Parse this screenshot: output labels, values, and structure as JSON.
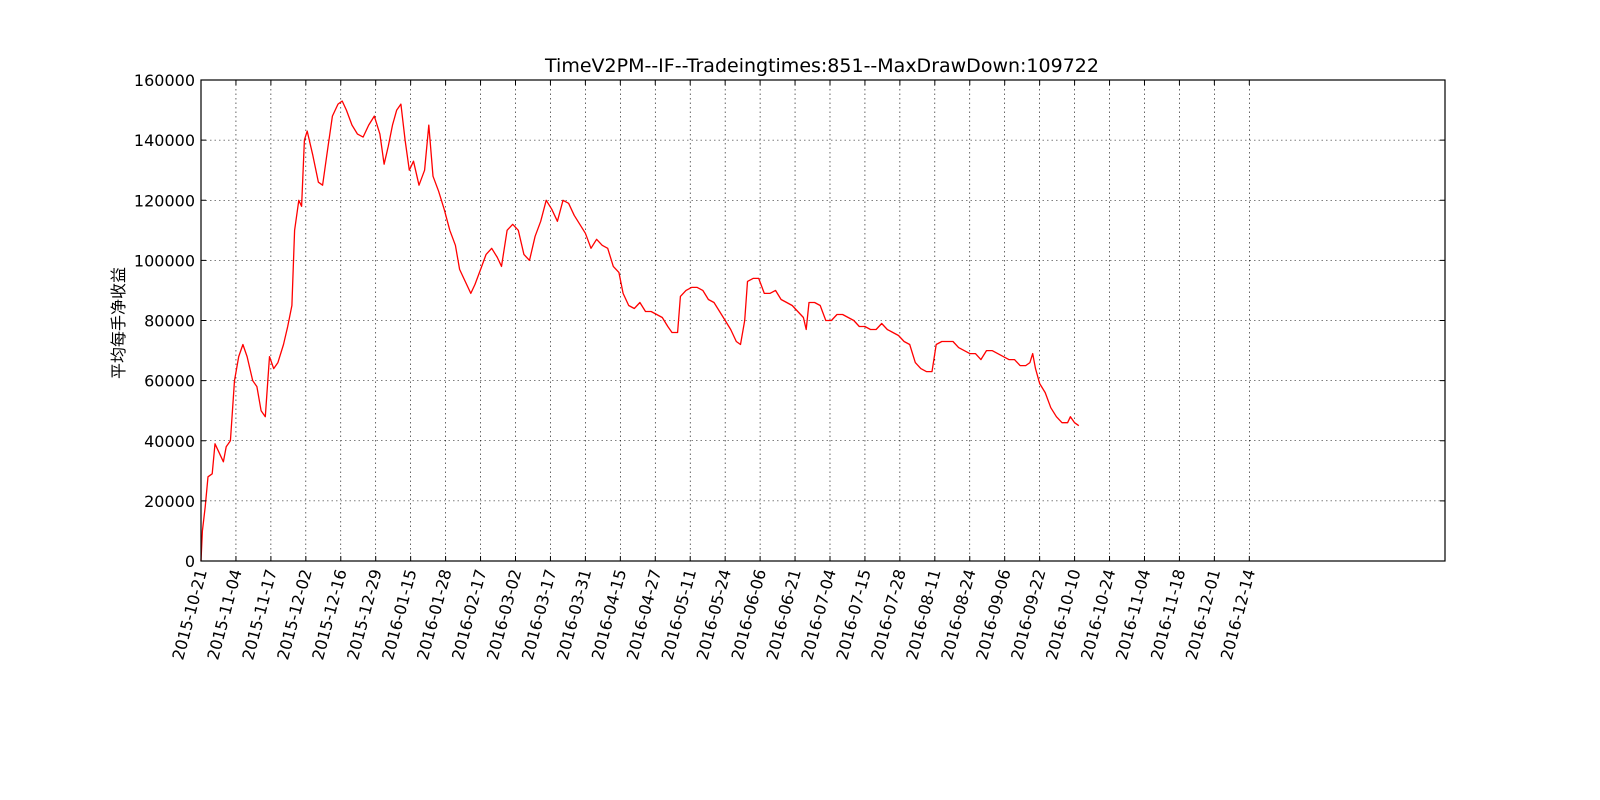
{
  "chart_data": {
    "type": "line",
    "title": "TimeV2PM--IF--Tradeingtimes:851--MaxDrawDown:109722",
    "xlabel": "",
    "ylabel": "平均每手净收益",
    "ylim": [
      0,
      160000
    ],
    "yticks": [
      "0",
      "20000",
      "40000",
      "60000",
      "80000",
      "100000",
      "120000",
      "140000",
      "160000"
    ],
    "x_index_range": [
      0,
      890
    ],
    "xtick_positions": [
      0,
      25,
      50,
      75,
      100,
      125,
      150,
      175,
      200,
      225,
      250,
      275,
      300,
      325,
      350,
      375,
      400,
      425,
      450,
      475,
      500,
      525,
      550,
      575,
      600,
      625,
      650,
      675,
      700,
      725,
      750
    ],
    "xticks": [
      "2015-10-21",
      "2015-11-04",
      "2015-11-17",
      "2015-12-02",
      "2015-12-16",
      "2015-12-29",
      "2016-01-15",
      "2016-01-28",
      "2016-02-17",
      "2016-03-02",
      "2016-03-17",
      "2016-03-31",
      "2016-04-15",
      "2016-04-27",
      "2016-05-11",
      "2016-05-24",
      "2016-06-06",
      "2016-06-21",
      "2016-07-04",
      "2016-07-15",
      "2016-07-28",
      "2016-08-11",
      "2016-08-24",
      "2016-09-06",
      "2016-09-22",
      "2016-10-10",
      "2016-10-24",
      "2016-11-04",
      "2016-11-18",
      "2016-12-01",
      "2016-12-14"
    ],
    "grid": true,
    "series": [
      {
        "color": "#ff0000",
        "points": [
          [
            0,
            0
          ],
          [
            1,
            10000
          ],
          [
            3,
            18000
          ],
          [
            5,
            28000
          ],
          [
            8,
            29000
          ],
          [
            10,
            39000
          ],
          [
            13,
            36000
          ],
          [
            16,
            33000
          ],
          [
            18,
            38000
          ],
          [
            21,
            40000
          ],
          [
            24,
            60000
          ],
          [
            27,
            68000
          ],
          [
            30,
            72000
          ],
          [
            33,
            68000
          ],
          [
            37,
            60000
          ],
          [
            40,
            58000
          ],
          [
            43,
            50000
          ],
          [
            46,
            48000
          ],
          [
            49,
            68000
          ],
          [
            52,
            64000
          ],
          [
            55,
            66000
          ],
          [
            59,
            72000
          ],
          [
            62,
            78000
          ],
          [
            65,
            85000
          ],
          [
            67,
            110000
          ],
          [
            70,
            120000
          ],
          [
            72,
            118000
          ],
          [
            74,
            140000
          ],
          [
            76,
            143000
          ],
          [
            80,
            135000
          ],
          [
            84,
            126000
          ],
          [
            87,
            125000
          ],
          [
            90,
            135000
          ],
          [
            94,
            148000
          ],
          [
            98,
            152000
          ],
          [
            101,
            153000
          ],
          [
            104,
            150000
          ],
          [
            108,
            145000
          ],
          [
            112,
            142000
          ],
          [
            116,
            141000
          ],
          [
            120,
            145000
          ],
          [
            124,
            148000
          ],
          [
            128,
            142000
          ],
          [
            131,
            132000
          ],
          [
            134,
            138000
          ],
          [
            137,
            145000
          ],
          [
            140,
            150000
          ],
          [
            143,
            152000
          ],
          [
            146,
            140000
          ],
          [
            149,
            130000
          ],
          [
            152,
            133000
          ],
          [
            156,
            125000
          ],
          [
            160,
            130000
          ],
          [
            163,
            145000
          ],
          [
            166,
            128000
          ],
          [
            170,
            123000
          ],
          [
            174,
            117000
          ],
          [
            178,
            110000
          ],
          [
            182,
            105000
          ],
          [
            185,
            97000
          ],
          [
            189,
            93000
          ],
          [
            193,
            89000
          ],
          [
            196,
            92000
          ],
          [
            200,
            97000
          ],
          [
            204,
            102000
          ],
          [
            208,
            104000
          ],
          [
            212,
            101000
          ],
          [
            215,
            98000
          ],
          [
            219,
            110000
          ],
          [
            223,
            112000
          ],
          [
            227,
            110000
          ],
          [
            231,
            102000
          ],
          [
            235,
            100000
          ],
          [
            239,
            108000
          ],
          [
            243,
            113000
          ],
          [
            247,
            120000
          ],
          [
            251,
            117000
          ],
          [
            255,
            113000
          ],
          [
            259,
            120000
          ],
          [
            263,
            119000
          ],
          [
            267,
            115000
          ],
          [
            271,
            112000
          ],
          [
            275,
            109000
          ],
          [
            279,
            104000
          ],
          [
            283,
            107000
          ],
          [
            287,
            105000
          ],
          [
            291,
            104000
          ],
          [
            295,
            98000
          ],
          [
            299,
            96000
          ],
          [
            302,
            89000
          ],
          [
            306,
            85000
          ],
          [
            310,
            84000
          ],
          [
            314,
            86000
          ],
          [
            318,
            83000
          ],
          [
            322,
            83000
          ],
          [
            326,
            82000
          ],
          [
            330,
            81000
          ],
          [
            334,
            78000
          ],
          [
            337,
            76000
          ],
          [
            341,
            76000
          ],
          [
            343,
            88000
          ],
          [
            347,
            90000
          ],
          [
            351,
            91000
          ],
          [
            355,
            91000
          ],
          [
            359,
            90000
          ],
          [
            363,
            87000
          ],
          [
            367,
            86000
          ],
          [
            371,
            83000
          ],
          [
            375,
            80000
          ],
          [
            379,
            77000
          ],
          [
            383,
            73000
          ],
          [
            386,
            72000
          ],
          [
            389,
            80000
          ],
          [
            391,
            93000
          ],
          [
            395,
            94000
          ],
          [
            399,
            94000
          ],
          [
            403,
            89000
          ],
          [
            407,
            89000
          ],
          [
            411,
            90000
          ],
          [
            415,
            87000
          ],
          [
            419,
            86000
          ],
          [
            423,
            85000
          ],
          [
            427,
            83000
          ],
          [
            431,
            81000
          ],
          [
            433,
            77000
          ],
          [
            435,
            86000
          ],
          [
            439,
            86000
          ],
          [
            443,
            85000
          ],
          [
            447,
            80000
          ],
          [
            451,
            80000
          ],
          [
            455,
            82000
          ],
          [
            459,
            82000
          ],
          [
            463,
            81000
          ],
          [
            467,
            80000
          ],
          [
            471,
            78000
          ],
          [
            475,
            78000
          ],
          [
            479,
            77000
          ],
          [
            483,
            77000
          ],
          [
            487,
            79000
          ],
          [
            491,
            77000
          ],
          [
            495,
            76000
          ],
          [
            499,
            75000
          ],
          [
            503,
            73000
          ],
          [
            507,
            72000
          ],
          [
            511,
            66000
          ],
          [
            515,
            64000
          ],
          [
            519,
            63000
          ],
          [
            523,
            63000
          ],
          [
            526,
            72000
          ],
          [
            530,
            73000
          ],
          [
            534,
            73000
          ],
          [
            538,
            73000
          ],
          [
            542,
            71000
          ],
          [
            546,
            70000
          ],
          [
            550,
            69000
          ],
          [
            554,
            69000
          ],
          [
            558,
            67000
          ],
          [
            562,
            70000
          ],
          [
            566,
            70000
          ],
          [
            570,
            69000
          ],
          [
            574,
            68000
          ],
          [
            578,
            67000
          ],
          [
            582,
            67000
          ],
          [
            586,
            65000
          ],
          [
            590,
            65000
          ],
          [
            593,
            66000
          ],
          [
            595,
            69000
          ],
          [
            597,
            64000
          ],
          [
            600,
            59000
          ],
          [
            604,
            56000
          ],
          [
            608,
            51000
          ],
          [
            612,
            48000
          ],
          [
            616,
            46000
          ],
          [
            620,
            46000
          ],
          [
            622,
            48000
          ],
          [
            625,
            46000
          ],
          [
            628,
            45000
          ]
        ]
      }
    ]
  }
}
